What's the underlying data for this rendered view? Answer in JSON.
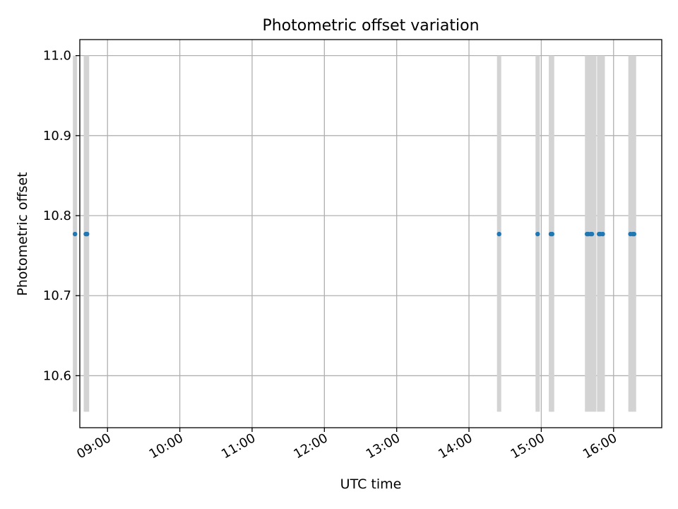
{
  "chart_data": {
    "type": "scatter",
    "title": "Photometric offset variation",
    "xlabel": "UTC time",
    "ylabel": "Photometric offset",
    "xlim": [
      "08:37",
      "16:40"
    ],
    "ylim": [
      10.535,
      11.02
    ],
    "x_ticks": [
      "09:00",
      "10:00",
      "11:00",
      "12:00",
      "13:00",
      "14:00",
      "15:00",
      "16:00"
    ],
    "y_ticks": [
      10.6,
      10.7,
      10.8,
      10.9,
      11.0
    ],
    "y_tick_labels": [
      "10.6",
      "10.7",
      "10.8",
      "10.9",
      "11.0"
    ],
    "grid": true,
    "band_color": "#d3d3d3",
    "point_color": "#1f77b4",
    "bands": {
      "y_range": [
        10.555,
        11.0
      ],
      "x": [
        "08:33",
        "08:42",
        "08:43",
        "14:25",
        "14:57",
        "15:08",
        "15:09",
        "15:38",
        "15:41",
        "15:44",
        "15:48",
        "15:51",
        "16:14",
        "16:17"
      ]
    },
    "points": {
      "x": [
        "08:33",
        "08:42",
        "08:43",
        "14:25",
        "14:57",
        "15:08",
        "15:09",
        "15:38",
        "15:39",
        "15:41",
        "15:42",
        "15:48",
        "15:49",
        "15:51",
        "16:14",
        "16:16",
        "16:17"
      ],
      "y": [
        10.777,
        10.777,
        10.777,
        10.777,
        10.777,
        10.777,
        10.777,
        10.777,
        10.777,
        10.777,
        10.777,
        10.777,
        10.777,
        10.777,
        10.777,
        10.777,
        10.777
      ]
    }
  }
}
